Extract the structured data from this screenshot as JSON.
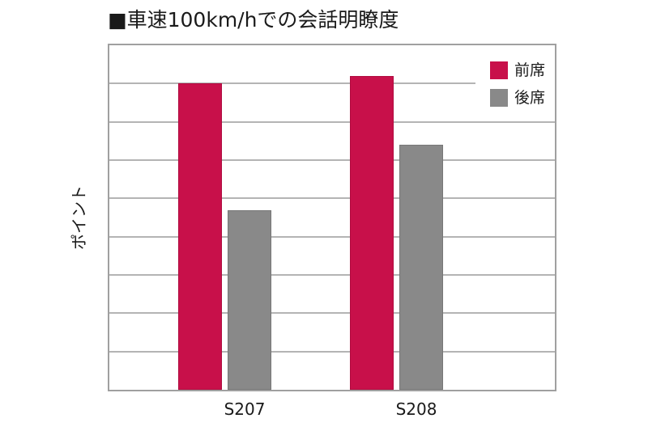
{
  "chart_data": {
    "type": "bar",
    "title": "■車速100km/hでの会話明瞭度",
    "xlabel": "",
    "ylabel": "ポイント",
    "categories": [
      "S207",
      "S208"
    ],
    "series": [
      {
        "name": "前席",
        "color": "#c8104a",
        "values": [
          8.0,
          8.2
        ]
      },
      {
        "name": "後席",
        "color": "#898989",
        "values": [
          4.7,
          6.4
        ]
      }
    ],
    "ylim": [
      0,
      9
    ],
    "yticks_labeled": false,
    "grid": true,
    "gridline_count": 8,
    "legend_position": "upper right (inside)"
  },
  "labels": {
    "title": "■車速100km/hでの会話明瞭度",
    "ylabel": "ポイント",
    "legend": [
      "前席",
      "後席"
    ],
    "categories": [
      "S207",
      "S208"
    ]
  }
}
